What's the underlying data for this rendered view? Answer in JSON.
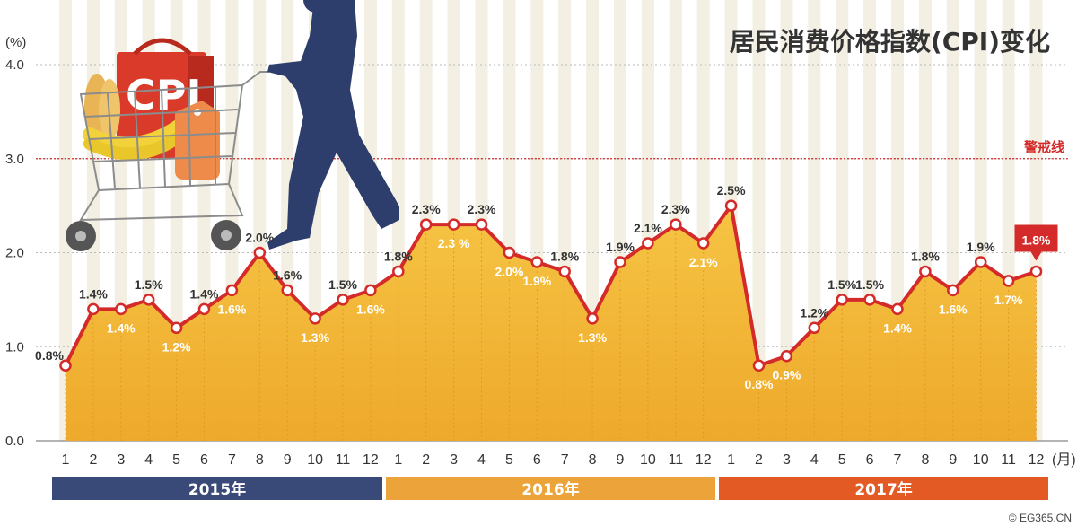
{
  "chart_data": {
    "type": "area",
    "title": "居民消费价格指数(CPI)变化",
    "y_unit": "(%)",
    "x_unit": "(月)",
    "ylim": [
      0,
      4.0
    ],
    "yticks": [
      "0.0",
      "1.0",
      "2.0",
      "3.0",
      "4.0"
    ],
    "grid": true,
    "warning_line": {
      "value": 3.0,
      "label": "警戒线"
    },
    "years": [
      "2015年",
      "2016年",
      "2017年"
    ],
    "months": [
      "1",
      "2",
      "3",
      "4",
      "5",
      "6",
      "7",
      "8",
      "9",
      "10",
      "11",
      "12",
      "1",
      "2",
      "3",
      "4",
      "5",
      "6",
      "7",
      "8",
      "9",
      "10",
      "11",
      "12",
      "1",
      "2",
      "3",
      "4",
      "5",
      "6",
      "7",
      "8",
      "9",
      "10",
      "11",
      "12"
    ],
    "series": [
      {
        "values": [
          0.8,
          1.4,
          1.4,
          1.5,
          1.2,
          1.4,
          1.6,
          2.0,
          1.6,
          1.3,
          1.5,
          1.6,
          1.8,
          2.3,
          2.3,
          2.3,
          2.0,
          1.9,
          1.8,
          1.3,
          1.9,
          2.1,
          2.3,
          2.1,
          2.5,
          0.8,
          0.9,
          1.2,
          1.5,
          1.5,
          1.4,
          1.8,
          1.6,
          1.9,
          1.7,
          1.8
        ],
        "labels": [
          "0.8%",
          "1.4%",
          "1.4%",
          "1.5%",
          "1.2%",
          "1.4%",
          "1.6%",
          "2.0%",
          "1.6%",
          "1.3%",
          "1.5%",
          "1.6%",
          "1.8%",
          "2.3%",
          "2.3 %",
          "2.3%",
          "2.0%",
          "1.9%",
          "1.8%",
          "1.3%",
          "1.9%",
          "2.1%",
          "2.3%",
          "2.1%",
          "2.5%",
          "0.8%",
          "0.9%",
          "1.2%",
          "1.5%",
          "1.5%",
          "1.4%",
          "1.8%",
          "1.6%",
          "1.9%",
          "1.7%",
          "1.8%"
        ]
      }
    ],
    "highlight_label": "1.8%",
    "colors": {
      "line": "#d42a2a",
      "area": "#f3b733",
      "year_2015": "#3a4a78",
      "year_2016": "#eba33a",
      "year_2017": "#e35a25",
      "warning": "#d42a2a"
    }
  },
  "credit": "© EG365.CN"
}
